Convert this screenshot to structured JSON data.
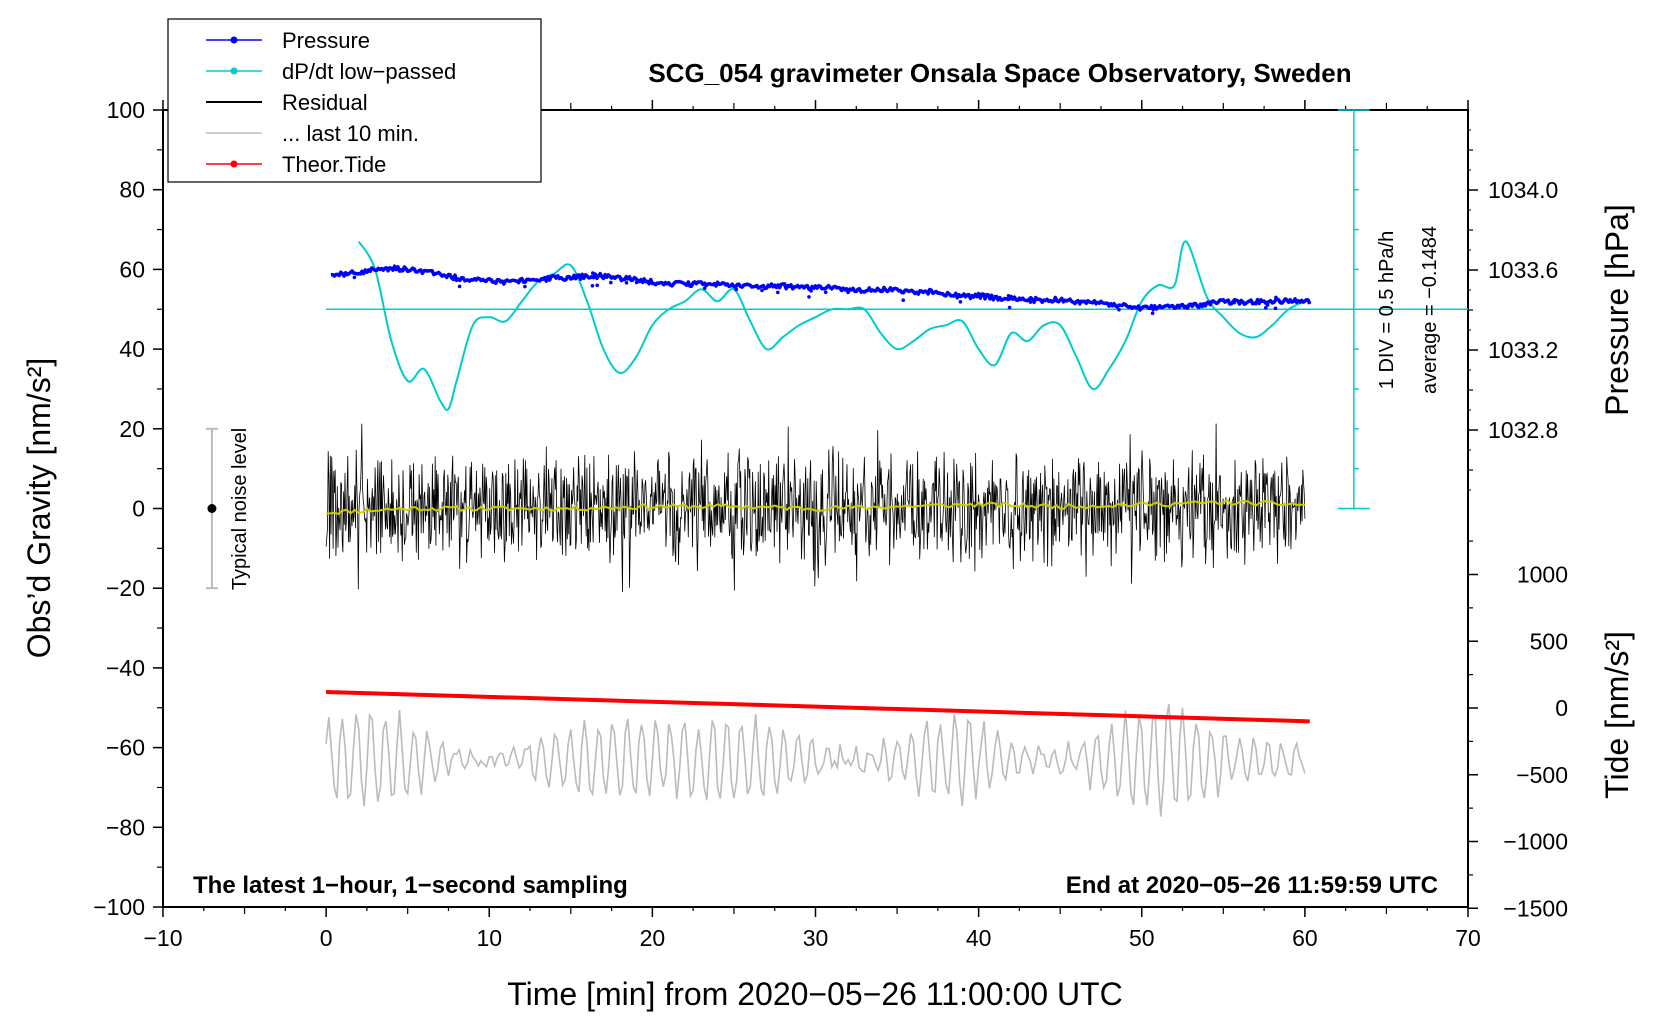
{
  "chart_data": {
    "type": "line",
    "title": "SCG_054 gravimeter Onsala Space Observatory, Sweden",
    "xlabel": "Time [min] from 2020−05−26 11:00:00 UTC",
    "ylabel_left": "Obs’d Gravity [nm/s²]",
    "ylabel_right_top": "Pressure [hPa]",
    "ylabel_right_bottom": "Tide [nm/s²]",
    "xlim": [
      -10,
      70
    ],
    "ylim": [
      -100,
      100
    ],
    "pressure_lim": [
      1032.4,
      1034.4
    ],
    "tide_lim": [
      -1500,
      1500
    ],
    "x_ticks": [
      "−10",
      "0",
      "10",
      "20",
      "30",
      "40",
      "50",
      "60",
      "70"
    ],
    "x_tick_values": [
      -10,
      0,
      10,
      20,
      30,
      40,
      50,
      60,
      70
    ],
    "y_ticks": [
      "100",
      "80",
      "60",
      "40",
      "20",
      "0",
      "−20",
      "−40",
      "−60",
      "−80",
      "−100"
    ],
    "y_tick_values": [
      100,
      80,
      60,
      40,
      20,
      0,
      -20,
      -40,
      -60,
      -80,
      -100
    ],
    "pressure_ticks": [
      "1034.0",
      "1033.6",
      "1033.2",
      "1032.8"
    ],
    "pressure_tick_values": [
      1034.0,
      1033.6,
      1033.2,
      1032.8
    ],
    "tide_ticks": [
      "1000",
      "500",
      "0",
      "−500",
      "−1000",
      "−1500"
    ],
    "tide_tick_values": [
      1000,
      500,
      0,
      -500,
      -1000,
      -1500
    ],
    "legend": [
      {
        "label": "Pressure",
        "color": "#0000ff",
        "marker": true
      },
      {
        "label": "dP/dt low−passed",
        "color": "#00cccc",
        "marker": true
      },
      {
        "label": "Residual",
        "color": "#000000",
        "marker": false
      },
      {
        "label": "... last 10 min.",
        "color": "#bbbbbb",
        "marker": false
      },
      {
        "label": "Theor.Tide",
        "color": "#ff0000",
        "marker": true
      }
    ],
    "legend_position": "top-left",
    "annotations": {
      "noise": "Typical noise level",
      "latest": "The latest 1−hour, 1−second sampling",
      "end_at": "End at 2020−05−26 11:59:59 UTC",
      "div": "1 DIV = 0.5 hPa/h",
      "average": "average = −0.1484"
    },
    "noise_bar": {
      "x": -7,
      "low": -20,
      "high": 20,
      "center": 0
    },
    "series": [
      {
        "name": "Pressure",
        "color": "#0000ff",
        "unit": "hPa",
        "x": [
          0.3,
          2,
          4,
          5.5,
          7,
          8,
          9,
          10,
          11,
          12,
          13,
          14,
          15,
          16,
          17,
          18,
          19,
          20,
          21,
          22,
          23,
          24,
          25,
          26,
          27,
          28,
          29,
          30,
          31,
          32,
          33,
          34,
          35,
          36,
          37,
          38,
          39,
          40,
          41,
          42,
          43,
          44,
          45,
          46,
          47,
          48,
          49,
          50,
          51,
          52,
          53,
          54,
          55,
          56,
          57,
          58,
          59,
          60.3
        ],
        "values": [
          1033.57,
          1033.59,
          1033.61,
          1033.6,
          1033.58,
          1033.56,
          1033.55,
          1033.55,
          1033.54,
          1033.55,
          1033.55,
          1033.56,
          1033.56,
          1033.57,
          1033.57,
          1033.56,
          1033.55,
          1033.54,
          1033.53,
          1033.53,
          1033.53,
          1033.53,
          1033.52,
          1033.52,
          1033.52,
          1033.52,
          1033.51,
          1033.51,
          1033.51,
          1033.5,
          1033.5,
          1033.5,
          1033.5,
          1033.49,
          1033.49,
          1033.48,
          1033.47,
          1033.47,
          1033.46,
          1033.46,
          1033.45,
          1033.45,
          1033.45,
          1033.44,
          1033.44,
          1033.43,
          1033.42,
          1033.41,
          1033.41,
          1033.42,
          1033.42,
          1033.43,
          1033.44,
          1033.44,
          1033.44,
          1033.44,
          1033.45,
          1033.44
        ]
      },
      {
        "name": "dP/dt low−passed",
        "color": "#00cccc",
        "unit": "nm/s²",
        "x": [
          2,
          3,
          4,
          5,
          6,
          7,
          7.5,
          8,
          9,
          10,
          11,
          12,
          13,
          14,
          15,
          16,
          17,
          18,
          19,
          20,
          21,
          22,
          23,
          24,
          25,
          26,
          27,
          28,
          29,
          30,
          31,
          32,
          33,
          34,
          35,
          36,
          37,
          38,
          39,
          40,
          41,
          42,
          43,
          44,
          45,
          46,
          47,
          48,
          49,
          50,
          51,
          52,
          52.7,
          54,
          55,
          56,
          57,
          58,
          59,
          60
        ],
        "values": [
          67,
          60,
          42,
          32,
          35,
          27,
          25,
          32,
          46,
          48,
          47,
          52,
          57,
          59,
          61,
          52,
          40,
          34,
          38,
          46,
          50,
          52,
          55,
          52,
          55,
          47,
          40,
          43,
          46,
          48,
          50,
          50,
          50,
          44,
          40,
          42,
          45,
          46,
          47,
          40,
          36,
          44,
          42,
          46,
          46,
          38,
          30,
          35,
          42,
          52,
          56,
          56,
          67,
          53,
          48,
          44,
          43,
          46,
          50,
          52
        ]
      },
      {
        "name": "average line",
        "color": "#00cccc",
        "unit": "nm/s²",
        "x": [
          0,
          70
        ],
        "values": [
          50,
          50
        ]
      },
      {
        "name": "Residual",
        "color": "#000000",
        "unit": "nm/s²",
        "x": [
          0,
          60
        ],
        "values": [
          0,
          0
        ],
        "envelope": [
          -18,
          22
        ],
        "note": "1-second sampled residual, noise band about ±12 nm/s²"
      },
      {
        "name": "Residual smoothed",
        "color": "#cccc00",
        "unit": "nm/s²",
        "x": [
          0,
          5,
          10,
          15,
          20,
          25,
          30,
          35,
          40,
          45,
          50,
          55,
          60
        ],
        "values": [
          -1,
          0,
          0,
          0,
          0.5,
          0.5,
          0,
          0.5,
          1,
          0.5,
          1,
          1.5,
          1
        ]
      },
      {
        "name": "... last 10 min.",
        "color": "#bbbbbb",
        "unit": "nm/s²",
        "x": [
          0,
          60
        ],
        "values": [
          -66,
          -65
        ],
        "envelope": [
          -80,
          -40
        ],
        "note": "oscillating trace centred near −63 nm/s²"
      },
      {
        "name": "Theor.Tide",
        "color": "#ff0000",
        "unit": "nm/s² (tide axis)",
        "x": [
          0,
          60.3
        ],
        "values": [
          120,
          -100
        ]
      }
    ]
  }
}
